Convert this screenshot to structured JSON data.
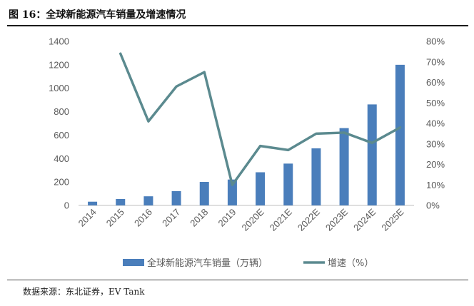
{
  "header": {
    "figure_title": "图 16：全球新能源汽车销量及增速情况"
  },
  "footer": {
    "source": "数据来源：东北证券，EV Tank"
  },
  "colors": {
    "bar": "#4a7ebb",
    "line": "#5b8a8f",
    "text": "#595959"
  },
  "chart_data": {
    "type": "bar",
    "categories": [
      "2014",
      "2015",
      "2016",
      "2017",
      "2018",
      "2019",
      "2020E",
      "2021E",
      "2022E",
      "2023E",
      "2024E",
      "2025E"
    ],
    "series": [
      {
        "name": "全球新能源汽车销量（万辆）",
        "type": "bar",
        "axis": "left",
        "values": [
          32,
          55,
          78,
          122,
          201,
          221,
          283,
          357,
          487,
          660,
          862,
          1200
        ]
      },
      {
        "name": "增速（%）",
        "type": "line",
        "axis": "right",
        "values": [
          null,
          74,
          41,
          58,
          65,
          10,
          29,
          27,
          35,
          35.5,
          30.5,
          38
        ]
      }
    ],
    "ylim_left": [
      0,
      1400
    ],
    "yticks_left": [
      "0",
      "200",
      "400",
      "600",
      "800",
      "1000",
      "1200",
      "1400"
    ],
    "ylim_right": [
      0,
      80
    ],
    "yticks_right": [
      "0%",
      "10%",
      "20%",
      "30%",
      "40%",
      "50%",
      "60%",
      "70%",
      "80%"
    ],
    "legend_position": "bottom",
    "grid": false
  }
}
